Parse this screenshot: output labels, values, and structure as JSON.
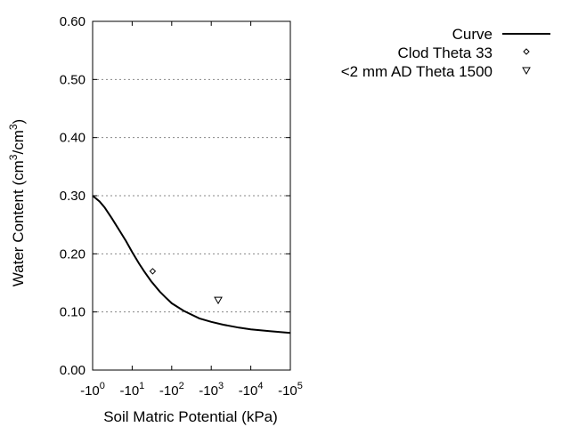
{
  "chart_data": {
    "type": "line",
    "title": "",
    "xlabel": "Soil Matric Potential (kPa)",
    "ylabel": "Water Content (cm3/cm3)",
    "ylabel_parts": [
      "Water Content (cm",
      "3",
      "/cm",
      "3",
      ")"
    ],
    "x_scale": "log",
    "x_sign": "negative",
    "xlim": [
      1,
      100000
    ],
    "ylim": [
      0,
      0.6
    ],
    "x_ticks": [
      {
        "value": 1,
        "base": "-10",
        "exp": "0"
      },
      {
        "value": 10,
        "base": "-10",
        "exp": "1"
      },
      {
        "value": 100,
        "base": "-10",
        "exp": "2"
      },
      {
        "value": 1000,
        "base": "-10",
        "exp": "3"
      },
      {
        "value": 10000,
        "base": "-10",
        "exp": "4"
      },
      {
        "value": 100000,
        "base": "-10",
        "exp": "5"
      }
    ],
    "y_ticks": [
      {
        "value": 0,
        "label": "0.00"
      },
      {
        "value": 0.1,
        "label": "0.10"
      },
      {
        "value": 0.2,
        "label": "0.20"
      },
      {
        "value": 0.3,
        "label": "0.30"
      },
      {
        "value": 0.4,
        "label": "0.40"
      },
      {
        "value": 0.5,
        "label": "0.50"
      },
      {
        "value": 0.6,
        "label": "0.60"
      }
    ],
    "grid": "horizontal dotted",
    "legend_position": "top-right",
    "series": [
      {
        "name": "Curve",
        "kind": "line",
        "color": "#000000",
        "x": [
          1,
          1.5,
          2,
          3,
          5,
          7,
          10,
          15,
          20,
          30,
          50,
          70,
          100,
          200,
          500,
          1000,
          2000,
          5000,
          10000,
          30000,
          100000
        ],
        "y": [
          0.3,
          0.29,
          0.28,
          0.262,
          0.238,
          0.222,
          0.203,
          0.183,
          0.17,
          0.153,
          0.135,
          0.125,
          0.115,
          0.102,
          0.089,
          0.083,
          0.078,
          0.073,
          0.07,
          0.067,
          0.064
        ]
      },
      {
        "name": "Clod Theta 33",
        "kind": "marker",
        "marker": "diamond",
        "x": [
          33
        ],
        "y": [
          0.17
        ]
      },
      {
        "name": "<2 mm AD Theta 1500",
        "kind": "marker",
        "marker": "triangle-down",
        "x": [
          1500
        ],
        "y": [
          0.12
        ]
      }
    ]
  }
}
